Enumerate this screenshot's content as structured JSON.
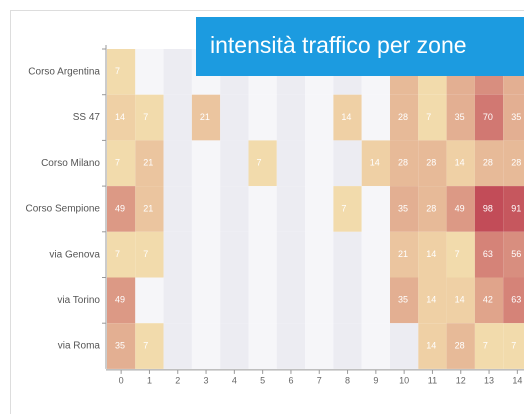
{
  "chart_data": {
    "type": "heatmap",
    "title": "intensità traffico per zone",
    "x": [
      0,
      1,
      2,
      3,
      4,
      5,
      6,
      7,
      8,
      9,
      10,
      11,
      12,
      13,
      14
    ],
    "y": [
      "Corso Argentina",
      "SS 47",
      "Corso Milano",
      "Corso Sempione",
      "via Genova",
      "via Torino",
      "via Roma"
    ],
    "values": [
      [
        7,
        null,
        null,
        null,
        null,
        null,
        null,
        null,
        null,
        null,
        28,
        7,
        35,
        56,
        35
      ],
      [
        14,
        7,
        null,
        21,
        null,
        null,
        null,
        null,
        14,
        null,
        28,
        7,
        35,
        70,
        35
      ],
      [
        7,
        21,
        null,
        null,
        null,
        7,
        null,
        null,
        null,
        14,
        28,
        28,
        14,
        28,
        28
      ],
      [
        49,
        21,
        null,
        null,
        null,
        null,
        null,
        null,
        7,
        null,
        35,
        28,
        49,
        98,
        91
      ],
      [
        7,
        7,
        null,
        null,
        null,
        null,
        null,
        null,
        null,
        null,
        21,
        14,
        7,
        63,
        56
      ],
      [
        49,
        null,
        null,
        null,
        null,
        null,
        null,
        null,
        null,
        null,
        35,
        14,
        14,
        42,
        63
      ],
      [
        35,
        7,
        null,
        null,
        null,
        null,
        null,
        null,
        null,
        null,
        null,
        14,
        28,
        7,
        7
      ]
    ],
    "color_range": [
      "#f6e6b2",
      "#c24c58"
    ]
  }
}
